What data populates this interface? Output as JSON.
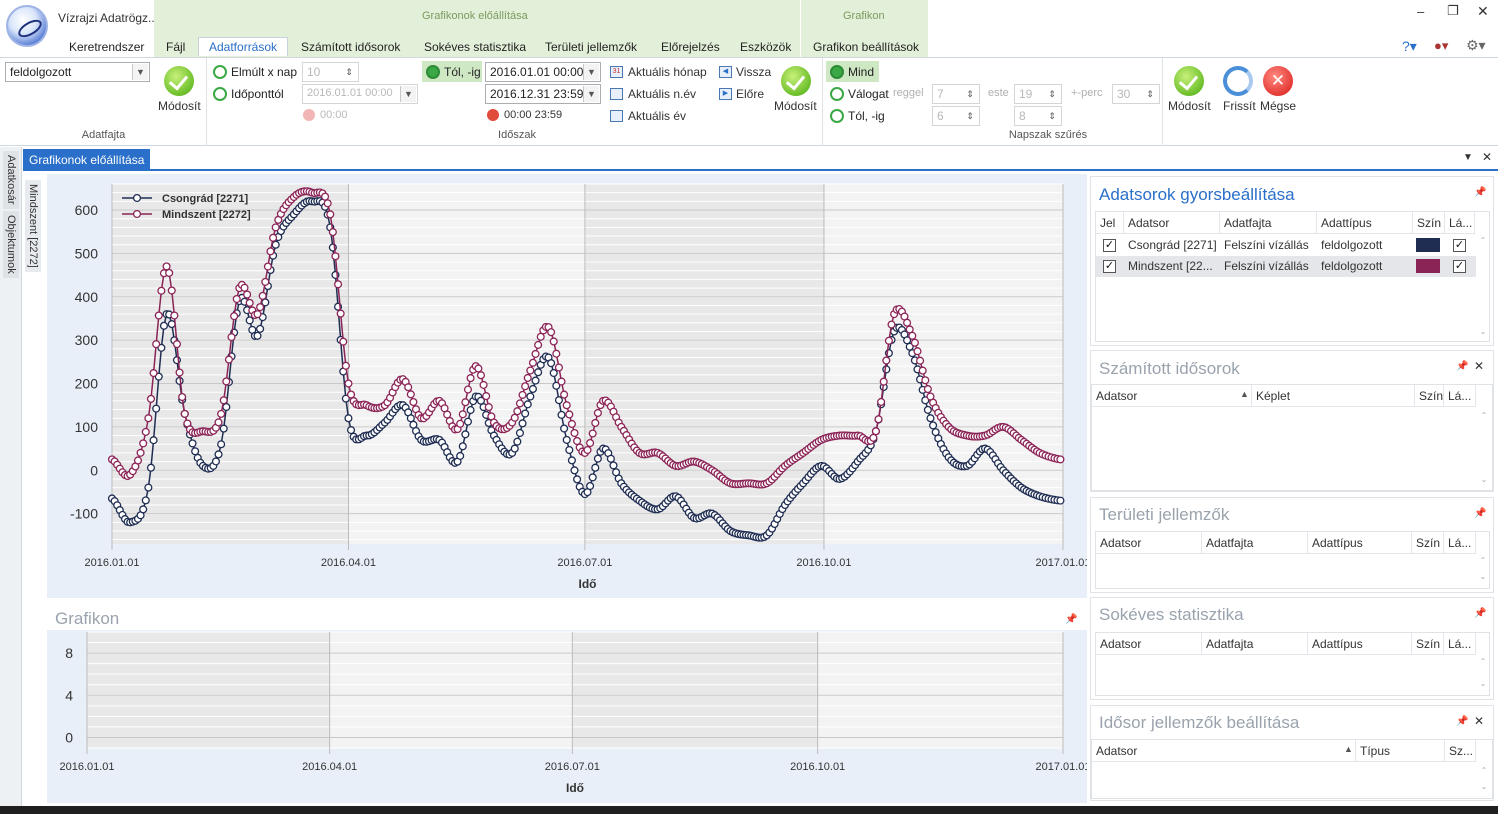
{
  "app": {
    "title": "Vízrajzi Adatrögz...",
    "context_groups": [
      {
        "label": "Grafikonok előállítása"
      },
      {
        "label": "Grafikon"
      }
    ],
    "tabs": [
      "Keretrendszer",
      "Fájl",
      "Adatforrások",
      "Számított idősorok",
      "Sokéves statisztika",
      "Területi jellemzők",
      "Előrejelzés",
      "Eszközök",
      "Grafikon beállítások"
    ],
    "active_tab": "Adatforrások"
  },
  "ribbon": {
    "adatfajta": {
      "value": "feldolgozott",
      "modify_label": "Módosít",
      "group_label": "Adatfajta"
    },
    "idoszak": {
      "elmult_label": "Elmúlt x nap",
      "elmult_value": "10",
      "idoponttol_label": "Időponttól",
      "idoponttol_value": "2016.01.01 00:00",
      "time_disabled": "00:00",
      "tolig_label": "Tól, -ig",
      "from_value": "2016.01.01 00:00",
      "to_value": "2016.12.31 23:59",
      "time_range": "00:00 23:59",
      "aktualis_honap": "Aktuális hónap",
      "aktualis_nev": "Aktuális n.év",
      "aktualis_ev": "Aktuális év",
      "vissza": "Vissza",
      "elore": "Előre",
      "modify_label": "Módosít",
      "group_label": "Időszak"
    },
    "napszak": {
      "mind_label": "Mind",
      "valogat_label": "Válogat",
      "reggel_label": "reggel",
      "reggel_value": "7",
      "este_label": "este",
      "este_value": "19",
      "perc_label": "+-perc",
      "perc_value": "30",
      "tolig_label": "Tól, -ig",
      "tolig_from": "6",
      "tolig_to": "8",
      "group_label": "Napszak szűrés"
    },
    "actions": {
      "modify": "Módosít",
      "refresh": "Frissít",
      "cancel": "Mégse"
    }
  },
  "dock": {
    "left_tabs": [
      "Adatkosár",
      "Objektumok"
    ],
    "side_tab": "Mindszent [2272]",
    "doc_tab": "Grafikonok előállítása"
  },
  "chart_main": {
    "legend": [
      "Csongrád [2271]",
      "Mindszent [2272]"
    ],
    "y_ticks": [
      "600",
      "500",
      "400",
      "300",
      "200",
      "100",
      "0",
      "-100"
    ],
    "x_ticks": [
      "2016.01.01",
      "2016.04.01",
      "2016.07.01",
      "2016.10.01",
      "2017.01.01"
    ],
    "x_label": "Idő"
  },
  "chart_bottom": {
    "title": "Grafikon",
    "y_ticks": [
      "8",
      "4",
      "0"
    ],
    "x_ticks": [
      "2016.01.01",
      "2016.04.01",
      "2016.07.01",
      "2016.10.01",
      "2017.01.01"
    ],
    "x_label": "Idő"
  },
  "chart_data": [
    {
      "type": "line",
      "x_label": "Idő",
      "ylim": [
        -170,
        660
      ],
      "xlim": [
        "2016.01.01",
        "2017.01.01"
      ],
      "grid": true,
      "legend": "top-left",
      "x": [
        "2016-01-01",
        "2016-01-08",
        "2016-01-15",
        "2016-01-22",
        "2016-01-29",
        "2016-02-05",
        "2016-02-12",
        "2016-02-19",
        "2016-02-26",
        "2016-03-04",
        "2016-03-11",
        "2016-03-18",
        "2016-03-25",
        "2016-04-01",
        "2016-04-08",
        "2016-04-15",
        "2016-04-22",
        "2016-04-29",
        "2016-05-06",
        "2016-05-13",
        "2016-05-20",
        "2016-05-27",
        "2016-06-03",
        "2016-06-10",
        "2016-06-17",
        "2016-06-24",
        "2016-07-01",
        "2016-07-08",
        "2016-07-15",
        "2016-07-22",
        "2016-07-29",
        "2016-08-05",
        "2016-08-12",
        "2016-08-19",
        "2016-08-26",
        "2016-09-02",
        "2016-09-09",
        "2016-09-16",
        "2016-09-23",
        "2016-09-30",
        "2016-10-07",
        "2016-10-14",
        "2016-10-21",
        "2016-10-28",
        "2016-11-04",
        "2016-11-11",
        "2016-11-18",
        "2016-11-25",
        "2016-12-02",
        "2016-12-09",
        "2016-12-16",
        "2016-12-23",
        "2016-12-31"
      ],
      "series": [
        {
          "name": "Csongrád [2271]",
          "color": "#1f2d52",
          "values": [
            -65,
            -120,
            -40,
            360,
            130,
            10,
            60,
            390,
            310,
            520,
            590,
            620,
            560,
            120,
            80,
            110,
            150,
            70,
            70,
            20,
            170,
            80,
            40,
            170,
            260,
            70,
            -55,
            50,
            -30,
            -70,
            -90,
            -60,
            -110,
            -100,
            -140,
            -150,
            -150,
            -80,
            -30,
            10,
            -20,
            20,
            90,
            320,
            270,
            120,
            30,
            10,
            50,
            0,
            -40,
            -60,
            -70
          ]
        },
        {
          "name": "Mindszent [2272]",
          "color": "#8b2456",
          "values": [
            25,
            -10,
            120,
            470,
            130,
            90,
            130,
            420,
            360,
            560,
            630,
            640,
            590,
            200,
            150,
            150,
            210,
            120,
            160,
            95,
            240,
            110,
            110,
            230,
            330,
            150,
            40,
            160,
            100,
            40,
            40,
            10,
            20,
            0,
            -30,
            -30,
            -30,
            10,
            40,
            70,
            80,
            80,
            90,
            360,
            310,
            170,
            100,
            80,
            80,
            100,
            70,
            40,
            25
          ]
        }
      ]
    },
    {
      "type": "line",
      "title": "Grafikon",
      "x_label": "Idő",
      "ylim": [
        -1,
        10
      ],
      "xlim": [
        "2016.01.01",
        "2017.01.01"
      ],
      "grid": true,
      "series": []
    }
  ],
  "panels": {
    "gyors": {
      "title": "Adatsorok gyorsbeállítása",
      "headers": [
        "Jel",
        "Adatsor",
        "Adatfajta",
        "Adattípus",
        "Szín",
        "Lá..."
      ],
      "rows": [
        {
          "adatsor": "Csongrád [2271]",
          "adatfajta": "Felszíni vízállás",
          "adattipus": "feldolgozott",
          "color": "#1f2d52",
          "jel": "✓",
          "la": "✓"
        },
        {
          "adatsor": "Mindszent [22...",
          "adatfajta": "Felszíni vízállás",
          "adattipus": "feldolgozott",
          "color": "#8b2456",
          "jel": "✓",
          "la": "✓"
        }
      ]
    },
    "szamitott": {
      "title": "Számított idősorok",
      "headers": [
        "Adatsor",
        "Képlet",
        "Szín",
        "Lá..."
      ]
    },
    "teruleti": {
      "title": "Területi jellemzők",
      "headers": [
        "Adatsor",
        "Adatfajta",
        "Adattípus",
        "Szín",
        "Lá..."
      ]
    },
    "sokeves": {
      "title": "Sokéves statisztika",
      "headers": [
        "Adatsor",
        "Adatfajta",
        "Adattípus",
        "Szín",
        "Lá..."
      ]
    },
    "idosor": {
      "title": "Idősor jellemzők beállítása",
      "headers": [
        "Adatsor",
        "Típus",
        "Sz..."
      ]
    }
  }
}
